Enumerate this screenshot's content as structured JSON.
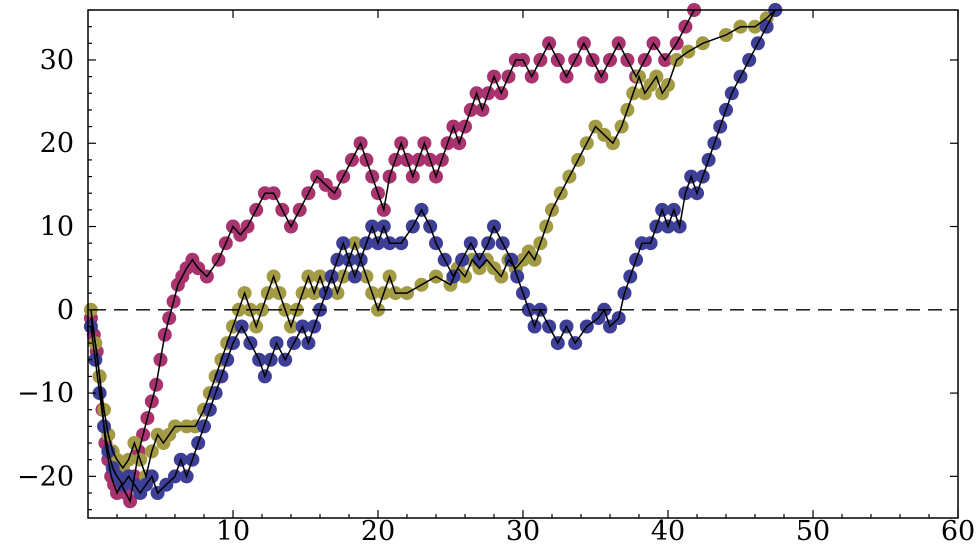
{
  "chart_data": {
    "type": "scatter",
    "title": "",
    "xlabel": "",
    "ylabel": "",
    "xlim": [
      0,
      60
    ],
    "ylim": [
      -25,
      36
    ],
    "x_ticks": [
      "10",
      "20",
      "30",
      "40",
      "50",
      "60"
    ],
    "y_ticks": [
      "-20",
      "-10",
      "0",
      "10",
      "20",
      "30"
    ],
    "x_tick_values": [
      10,
      20,
      30,
      40,
      50,
      60
    ],
    "y_tick_values": [
      -20,
      -10,
      0,
      10,
      20,
      30
    ],
    "reference_line": {
      "y": 0,
      "style": "dashed"
    },
    "grid": false,
    "series": [
      {
        "color": "#a8336e",
        "points": [
          [
            0.2,
            -1
          ],
          [
            0.4,
            -3
          ],
          [
            0.6,
            -5
          ],
          [
            0.8,
            -8
          ],
          [
            1.0,
            -12
          ],
          [
            1.2,
            -16
          ],
          [
            1.4,
            -18
          ],
          [
            1.6,
            -20
          ],
          [
            1.8,
            -21
          ],
          [
            2.0,
            -22
          ],
          [
            2.3,
            -21
          ],
          [
            2.6,
            -22
          ],
          [
            2.9,
            -23
          ],
          [
            3.2,
            -20
          ],
          [
            3.5,
            -17
          ],
          [
            3.8,
            -15
          ],
          [
            4.1,
            -13
          ],
          [
            4.4,
            -11
          ],
          [
            4.7,
            -9
          ],
          [
            5.0,
            -6
          ],
          [
            5.3,
            -3
          ],
          [
            5.6,
            -1
          ],
          [
            5.9,
            1
          ],
          [
            6.2,
            3
          ],
          [
            6.5,
            4
          ],
          [
            6.8,
            5
          ],
          [
            7.2,
            6
          ],
          [
            7.6,
            5
          ],
          [
            8.2,
            4
          ],
          [
            9.0,
            6
          ],
          [
            9.5,
            8
          ],
          [
            10.0,
            10
          ],
          [
            10.5,
            9
          ],
          [
            11.0,
            10
          ],
          [
            11.6,
            12
          ],
          [
            12.2,
            14
          ],
          [
            12.8,
            14
          ],
          [
            13.4,
            12
          ],
          [
            14.0,
            10
          ],
          [
            14.6,
            12
          ],
          [
            15.2,
            14
          ],
          [
            15.8,
            16
          ],
          [
            16.4,
            15
          ],
          [
            17.0,
            14
          ],
          [
            17.6,
            16
          ],
          [
            18.2,
            18
          ],
          [
            18.8,
            20
          ],
          [
            19.2,
            18
          ],
          [
            19.6,
            16
          ],
          [
            20.0,
            14
          ],
          [
            20.4,
            12
          ],
          [
            20.8,
            16
          ],
          [
            21.2,
            18
          ],
          [
            21.6,
            20
          ],
          [
            22.0,
            18
          ],
          [
            22.4,
            16
          ],
          [
            22.8,
            18
          ],
          [
            23.2,
            20
          ],
          [
            23.6,
            18
          ],
          [
            24.0,
            16
          ],
          [
            24.4,
            18
          ],
          [
            24.8,
            20
          ],
          [
            25.2,
            22
          ],
          [
            25.6,
            20
          ],
          [
            26.0,
            22
          ],
          [
            26.4,
            24
          ],
          [
            26.8,
            26
          ],
          [
            27.2,
            24
          ],
          [
            27.6,
            26
          ],
          [
            28.0,
            28
          ],
          [
            28.5,
            26
          ],
          [
            29.0,
            28
          ],
          [
            29.5,
            30
          ],
          [
            30.0,
            30
          ],
          [
            30.6,
            28
          ],
          [
            31.2,
            30
          ],
          [
            31.8,
            32
          ],
          [
            32.4,
            30
          ],
          [
            33.0,
            28
          ],
          [
            33.6,
            30
          ],
          [
            34.2,
            32
          ],
          [
            34.8,
            30
          ],
          [
            35.4,
            28
          ],
          [
            36.0,
            30
          ],
          [
            36.6,
            32
          ],
          [
            37.2,
            30
          ],
          [
            37.8,
            28
          ],
          [
            38.4,
            30
          ],
          [
            39.0,
            32
          ],
          [
            39.8,
            30
          ],
          [
            40.6,
            32
          ],
          [
            41.2,
            34
          ],
          [
            41.8,
            36
          ]
        ]
      },
      {
        "color": "#a39a44",
        "points": [
          [
            0.2,
            0
          ],
          [
            0.5,
            -4
          ],
          [
            0.8,
            -8
          ],
          [
            1.1,
            -12
          ],
          [
            1.4,
            -15
          ],
          [
            1.7,
            -17
          ],
          [
            2.0,
            -18
          ],
          [
            2.4,
            -19
          ],
          [
            2.8,
            -18
          ],
          [
            3.2,
            -16
          ],
          [
            3.6,
            -18
          ],
          [
            4.0,
            -20
          ],
          [
            4.4,
            -17
          ],
          [
            4.8,
            -15
          ],
          [
            5.2,
            -16
          ],
          [
            5.6,
            -15
          ],
          [
            6.0,
            -14
          ],
          [
            6.8,
            -14
          ],
          [
            7.4,
            -14
          ],
          [
            8.0,
            -12
          ],
          [
            8.4,
            -10
          ],
          [
            8.8,
            -8
          ],
          [
            9.2,
            -6
          ],
          [
            9.6,
            -4
          ],
          [
            10.0,
            -2
          ],
          [
            10.4,
            0
          ],
          [
            10.8,
            2
          ],
          [
            11.2,
            0
          ],
          [
            11.6,
            -2
          ],
          [
            12.0,
            0
          ],
          [
            12.4,
            2
          ],
          [
            12.8,
            4
          ],
          [
            13.2,
            2
          ],
          [
            13.6,
            0
          ],
          [
            14.0,
            -2
          ],
          [
            14.4,
            0
          ],
          [
            14.8,
            2
          ],
          [
            15.2,
            4
          ],
          [
            15.6,
            2
          ],
          [
            16.0,
            4
          ],
          [
            16.4,
            2
          ],
          [
            16.8,
            4
          ],
          [
            17.2,
            2
          ],
          [
            17.6,
            4
          ],
          [
            18.0,
            6
          ],
          [
            18.4,
            8
          ],
          [
            18.8,
            6
          ],
          [
            19.2,
            4
          ],
          [
            19.6,
            2
          ],
          [
            20.0,
            0
          ],
          [
            20.4,
            2
          ],
          [
            20.8,
            4
          ],
          [
            21.2,
            2
          ],
          [
            22.0,
            2
          ],
          [
            23.0,
            3
          ],
          [
            24.0,
            4
          ],
          [
            25.0,
            3
          ],
          [
            25.5,
            5
          ],
          [
            26.0,
            4
          ],
          [
            26.5,
            6
          ],
          [
            27.0,
            5
          ],
          [
            27.5,
            6
          ],
          [
            28.0,
            5
          ],
          [
            28.5,
            4
          ],
          [
            29.0,
            6
          ],
          [
            29.5,
            5
          ],
          [
            30.0,
            6
          ],
          [
            30.4,
            7
          ],
          [
            30.8,
            6
          ],
          [
            31.2,
            8
          ],
          [
            31.6,
            10
          ],
          [
            32.0,
            12
          ],
          [
            32.6,
            14
          ],
          [
            33.2,
            16
          ],
          [
            33.8,
            18
          ],
          [
            34.4,
            20
          ],
          [
            35.0,
            22
          ],
          [
            35.6,
            21
          ],
          [
            36.2,
            20
          ],
          [
            36.8,
            22
          ],
          [
            37.2,
            24
          ],
          [
            37.6,
            26
          ],
          [
            38.0,
            28
          ],
          [
            38.4,
            26
          ],
          [
            38.8,
            27
          ],
          [
            39.2,
            28
          ],
          [
            39.6,
            26
          ],
          [
            40.0,
            27
          ],
          [
            40.6,
            30
          ],
          [
            41.4,
            31
          ],
          [
            42.4,
            32
          ],
          [
            44.0,
            33
          ],
          [
            45.0,
            34
          ],
          [
            46.0,
            34
          ],
          [
            46.8,
            35
          ],
          [
            47.4,
            36
          ]
        ]
      },
      {
        "color": "#3d3f96",
        "points": [
          [
            0.2,
            -2
          ],
          [
            0.5,
            -6
          ],
          [
            0.8,
            -10
          ],
          [
            1.1,
            -14
          ],
          [
            1.4,
            -17
          ],
          [
            1.7,
            -19
          ],
          [
            2.0,
            -20
          ],
          [
            2.4,
            -21
          ],
          [
            2.8,
            -20
          ],
          [
            3.2,
            -21
          ],
          [
            3.6,
            -22
          ],
          [
            4.0,
            -21
          ],
          [
            4.4,
            -20
          ],
          [
            4.8,
            -22
          ],
          [
            5.4,
            -21
          ],
          [
            6.0,
            -20
          ],
          [
            6.4,
            -18
          ],
          [
            6.8,
            -20
          ],
          [
            7.2,
            -18
          ],
          [
            7.6,
            -16
          ],
          [
            8.0,
            -14
          ],
          [
            8.4,
            -12
          ],
          [
            8.8,
            -10
          ],
          [
            9.2,
            -8
          ],
          [
            9.6,
            -6
          ],
          [
            10.0,
            -4
          ],
          [
            10.6,
            -2
          ],
          [
            11.2,
            -4
          ],
          [
            11.8,
            -6
          ],
          [
            12.2,
            -8
          ],
          [
            12.6,
            -6
          ],
          [
            13.0,
            -4
          ],
          [
            13.6,
            -6
          ],
          [
            14.2,
            -4
          ],
          [
            14.8,
            -2
          ],
          [
            15.2,
            -4
          ],
          [
            15.6,
            -2
          ],
          [
            16.0,
            0
          ],
          [
            16.4,
            2
          ],
          [
            16.8,
            4
          ],
          [
            17.2,
            6
          ],
          [
            17.6,
            8
          ],
          [
            18.0,
            6
          ],
          [
            18.4,
            4
          ],
          [
            18.8,
            6
          ],
          [
            19.2,
            8
          ],
          [
            19.6,
            10
          ],
          [
            20.0,
            8
          ],
          [
            20.4,
            10
          ],
          [
            20.8,
            8
          ],
          [
            21.6,
            8
          ],
          [
            22.4,
            10
          ],
          [
            23.0,
            12
          ],
          [
            23.6,
            10
          ],
          [
            24.0,
            8
          ],
          [
            24.6,
            6
          ],
          [
            25.2,
            4
          ],
          [
            25.8,
            6
          ],
          [
            26.4,
            8
          ],
          [
            27.0,
            6
          ],
          [
            27.6,
            8
          ],
          [
            28.0,
            10
          ],
          [
            28.6,
            8
          ],
          [
            29.2,
            6
          ],
          [
            29.6,
            4
          ],
          [
            30.0,
            2
          ],
          [
            30.4,
            0
          ],
          [
            30.8,
            -2
          ],
          [
            31.2,
            0
          ],
          [
            31.8,
            -2
          ],
          [
            32.4,
            -4
          ],
          [
            33.0,
            -2
          ],
          [
            33.6,
            -4
          ],
          [
            34.4,
            -2
          ],
          [
            35.2,
            -1
          ],
          [
            35.6,
            0
          ],
          [
            36.0,
            -2
          ],
          [
            36.6,
            -1
          ],
          [
            37.0,
            2
          ],
          [
            37.4,
            4
          ],
          [
            37.8,
            6
          ],
          [
            38.2,
            8
          ],
          [
            38.8,
            8
          ],
          [
            39.2,
            10
          ],
          [
            39.6,
            12
          ],
          [
            40.0,
            10
          ],
          [
            40.4,
            12
          ],
          [
            40.8,
            10
          ],
          [
            41.2,
            14
          ],
          [
            41.6,
            16
          ],
          [
            42.0,
            14
          ],
          [
            42.4,
            16
          ],
          [
            42.8,
            18
          ],
          [
            43.2,
            20
          ],
          [
            43.6,
            22
          ],
          [
            44.0,
            24
          ],
          [
            44.4,
            26
          ],
          [
            45.0,
            28
          ],
          [
            45.6,
            30
          ],
          [
            46.2,
            32
          ],
          [
            46.8,
            34
          ],
          [
            47.4,
            36
          ]
        ]
      }
    ]
  }
}
